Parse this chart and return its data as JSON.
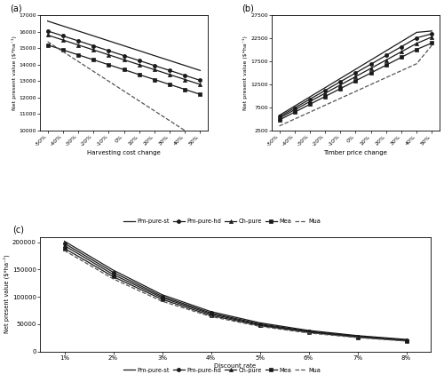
{
  "pct_labels": [
    "-50%",
    "-40%",
    "-30%",
    "-20%",
    "-10%",
    "0%",
    "10%",
    "20%",
    "30%",
    "40%",
    "50%"
  ],
  "pct_x": [
    -50,
    -40,
    -30,
    -20,
    -10,
    0,
    10,
    20,
    30,
    40,
    50
  ],
  "harvest_Pm_pure_st": [
    16650,
    16350,
    16050,
    15750,
    15450,
    15150,
    14850,
    14550,
    14250,
    13950,
    13650
  ],
  "harvest_Pm_pure_hd": [
    16050,
    15750,
    15450,
    15150,
    14850,
    14550,
    14250,
    13950,
    13650,
    13350,
    13050
  ],
  "harvest_Ch_pure": [
    15800,
    15500,
    15200,
    14900,
    14600,
    14300,
    14000,
    13700,
    13400,
    13100,
    12800
  ],
  "harvest_Mea": [
    15200,
    14900,
    14600,
    14300,
    14000,
    13700,
    13400,
    13100,
    12800,
    12500,
    12200
  ],
  "harvest_Mua": [
    15400,
    14800,
    14200,
    13600,
    13000,
    12400,
    11800,
    11200,
    10600,
    10000,
    9400
  ],
  "timber_Pm_pure_st": [
    5800,
    7800,
    9800,
    11800,
    13800,
    15800,
    17800,
    19800,
    21800,
    23800,
    24100
  ],
  "timber_Pm_pure_hd": [
    5500,
    7400,
    9300,
    11200,
    13100,
    15000,
    16900,
    18800,
    20700,
    22600,
    23500
  ],
  "timber_Ch_pure": [
    5200,
    7000,
    8800,
    10600,
    12400,
    14200,
    16000,
    17800,
    19600,
    21400,
    22800
  ],
  "timber_Mea": [
    4800,
    6500,
    8200,
    9900,
    11600,
    13300,
    15000,
    16700,
    18400,
    20100,
    21500
  ],
  "timber_Mua": [
    3500,
    5000,
    6500,
    8000,
    9500,
    11000,
    12500,
    14000,
    15500,
    17000,
    21000
  ],
  "discount_rates": [
    "1%",
    "2%",
    "3%",
    "4%",
    "5%",
    "6%",
    "7%",
    "8%"
  ],
  "discount_x": [
    1,
    2,
    3,
    4,
    5,
    6,
    7,
    8
  ],
  "disc_Pm_pure_st": [
    202000,
    149000,
    104000,
    73000,
    52500,
    38500,
    29000,
    22000
  ],
  "disc_Pm_pure_hd": [
    198000,
    145000,
    101000,
    70500,
    50500,
    37000,
    27800,
    21000
  ],
  "disc_Ch_pure": [
    194000,
    141000,
    98500,
    68500,
    49000,
    36000,
    27000,
    20200
  ],
  "disc_Mea": [
    189000,
    137000,
    95500,
    66000,
    47500,
    35000,
    26200,
    19600
  ],
  "disc_Mua": [
    185000,
    133000,
    92000,
    64000,
    46000,
    33800,
    25400,
    19000
  ],
  "legend_labels": [
    "Pm-pure-st",
    "Pm-pure-hd",
    "Ch-pure",
    "Mea",
    "Mua"
  ]
}
